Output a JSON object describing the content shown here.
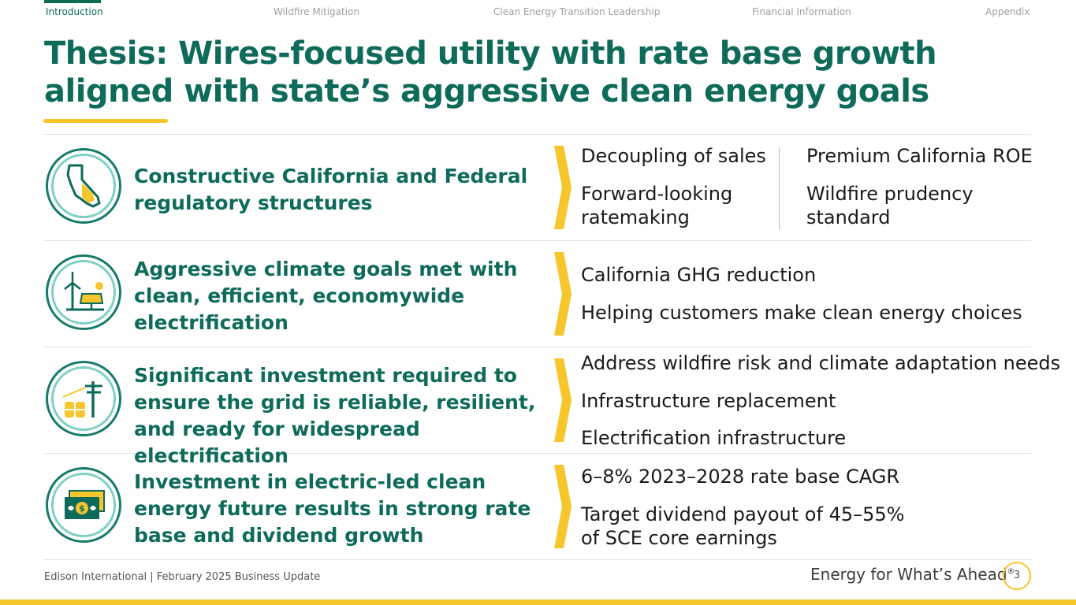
{
  "nav": {
    "items": [
      "Introduction",
      "Wildfire Mitigation",
      "Clean Energy Transition Leadership",
      "Financial Information",
      "Appendix"
    ],
    "active_index": 0
  },
  "title": "Thesis: Wires-focused utility with rate base growth aligned with state’s aggressive clean energy goals",
  "rows": [
    {
      "icon": "california-map-icon",
      "heading": "Constructive California and Federal regulatory structures",
      "left_points": [
        "Decoupling of sales",
        "Forward-looking ratemaking"
      ],
      "right_points": [
        "Premium California ROE",
        "Wildfire prudency standard"
      ]
    },
    {
      "icon": "wind-solar-icon",
      "heading": "Aggressive climate goals met with clean, efficient, economywide electrification",
      "points": [
        "California GHG reduction",
        "Helping customers make clean energy choices"
      ]
    },
    {
      "icon": "grid-infrastructure-icon",
      "heading": "Significant investment required to ensure the grid is reliable, resilient, and ready for widespread electrification",
      "points": [
        "Address wildfire risk and climate adaptation needs",
        "Infrastructure replacement",
        "Electrification infrastructure"
      ]
    },
    {
      "icon": "money-icon",
      "heading": "Investment in electric-led clean energy future results in strong rate base and dividend growth",
      "points": [
        "6–8% 2023–2028 rate base CAGR",
        "Target dividend payout of 45–55% of SCE core earnings"
      ]
    }
  ],
  "footer": {
    "left": "Edison International |  February 2025 Business Update",
    "tagline": "Energy for What’s Ahead",
    "tagline_mark": "®",
    "page": "3"
  },
  "colors": {
    "primary": "#0e6b5a",
    "accent": "#f7c52c",
    "light_teal": "#7ed0c4"
  }
}
